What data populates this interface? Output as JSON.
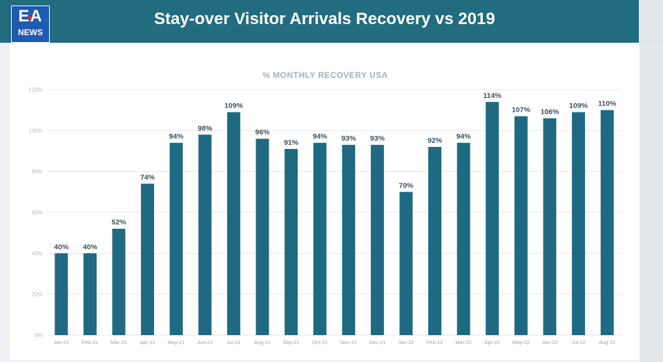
{
  "header": {
    "logo": {
      "line1": "EA",
      "line2": "NEWS"
    },
    "title": "Stay-over Visitor Arrivals Recovery vs 2019"
  },
  "colors": {
    "header_bg": "#226c80",
    "bar": "#1f6983",
    "logo_bg": "#1f5bb0",
    "logo_star": "#d7262d"
  },
  "icons": {
    "logo_star": "star-icon"
  },
  "chart_data": {
    "type": "bar",
    "title": "% MONTHLY RECOVERY USA",
    "categories": [
      "Jan-21",
      "Feb-21",
      "Mar-21",
      "Apr-21",
      "May-21",
      "Jun-21",
      "Jul-21",
      "Aug-21",
      "Sep-21",
      "Oct-21",
      "Nov-21",
      "Dec-21",
      "Jan-22",
      "Feb-22",
      "Mar-22",
      "Apr-22",
      "May-22",
      "Jun-22",
      "Jul-22",
      "Aug-22"
    ],
    "values": [
      40,
      40,
      52,
      74,
      94,
      98,
      109,
      96,
      91,
      94,
      93,
      93,
      70,
      92,
      94,
      114,
      107,
      106,
      109,
      110
    ],
    "data_labels": [
      "40%",
      "40%",
      "52%",
      "74%",
      "94%",
      "98%",
      "109%",
      "96%",
      "91%",
      "94%",
      "93%",
      "93%",
      "70%",
      "92%",
      "94%",
      "114%",
      "107%",
      "106%",
      "109%",
      "110%"
    ],
    "y_ticks": [
      "0%",
      "20%",
      "40%",
      "60%",
      "80%",
      "100%",
      "120%"
    ],
    "ylim": [
      0,
      120
    ],
    "grid": true,
    "legend": "none"
  }
}
